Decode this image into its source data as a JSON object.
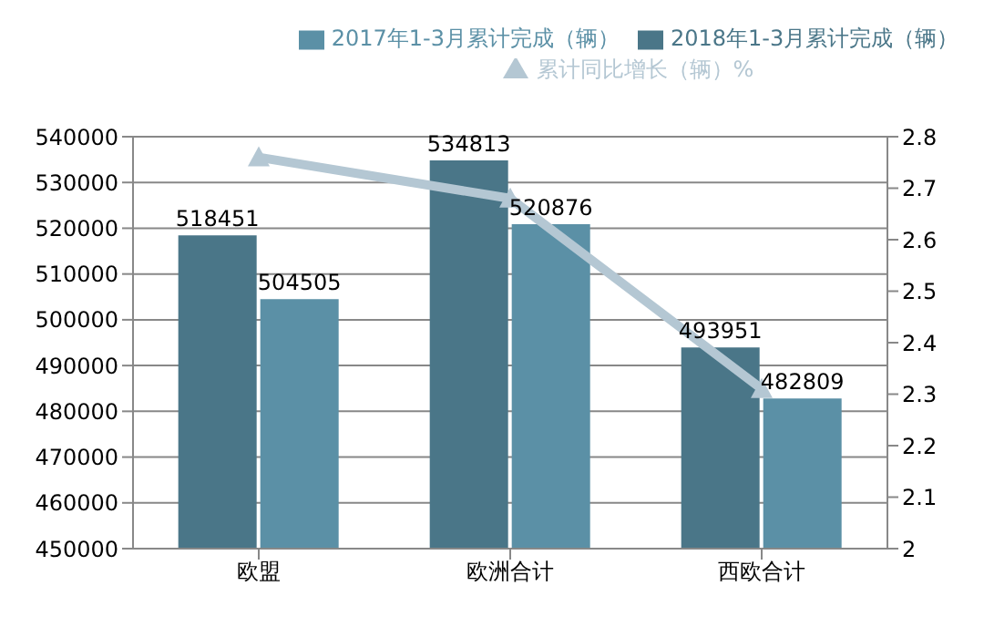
{
  "chart_data": {
    "type": "bar",
    "categories": [
      "欧盟",
      "欧洲合计",
      "西欧合计"
    ],
    "series": [
      {
        "name": "2018年1-3月累计完成（辆）",
        "color": "#4a7688",
        "values": [
          518451,
          534813,
          493951
        ],
        "value_labels": [
          "518451",
          "534813",
          "493951"
        ]
      },
      {
        "name": "2017年1-3月累计完成（辆）",
        "color": "#5b90a6",
        "values": [
          504505,
          520876,
          482809
        ],
        "value_labels": [
          "504505",
          "520876",
          "482809"
        ]
      },
      {
        "name": "累计同比增长（辆）%",
        "type": "line",
        "axis": "y2",
        "color": "#b4c7d3",
        "marker": "triangle",
        "values": [
          2.76,
          2.68,
          2.31
        ]
      }
    ],
    "ylim": [
      450000,
      540000
    ],
    "yticks": [
      450000,
      460000,
      470000,
      480000,
      490000,
      500000,
      510000,
      520000,
      530000,
      540000
    ],
    "y2lim": [
      2,
      2.8
    ],
    "y2ticks": [
      2,
      2.1,
      2.2,
      2.3,
      2.4,
      2.5,
      2.6,
      2.7,
      2.8
    ],
    "grid": "y",
    "legend": "top"
  }
}
